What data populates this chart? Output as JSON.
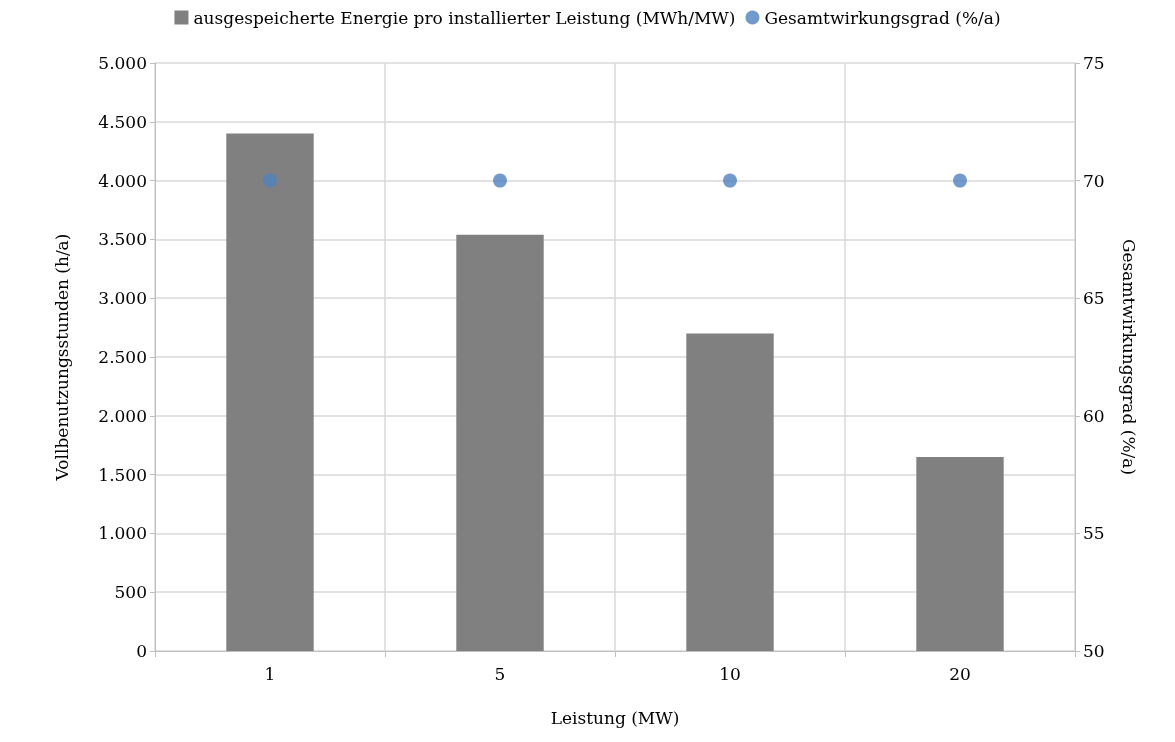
{
  "chart_data": {
    "type": "bar",
    "xlabel": "Leistung (MW)",
    "ylabel": "Vollbenutzungsstunden (h/a)",
    "y2label": "Gesamtwirkungsgrad (%/a)",
    "categories": [
      "1",
      "5",
      "10",
      "20"
    ],
    "series": [
      {
        "name": "ausgespeicherte Energie pro installierter Leistung (MWh/MW)",
        "color": "#808080",
        "values": [
          4400,
          3540,
          2700,
          1650
        ]
      },
      {
        "name": "Gesamtwirkungsgrad (%/a)",
        "type": "scatter",
        "axis": "y2",
        "x": [
          "1",
          "5",
          "10",
          "20"
        ],
        "color": "#4f81bd",
        "marker": "circle",
        "values": [
          70,
          70,
          70,
          70
        ]
      }
    ],
    "ylim": [
      0,
      5000
    ],
    "yticks": [
      {
        "value": 0,
        "label": "0"
      },
      {
        "value": 500,
        "label": "500"
      },
      {
        "value": 1000,
        "label": "1.000"
      },
      {
        "value": 1500,
        "label": "1.500"
      },
      {
        "value": 2000,
        "label": "2.000"
      },
      {
        "value": 2500,
        "label": "2.500"
      },
      {
        "value": 3000,
        "label": "3.000"
      },
      {
        "value": 3500,
        "label": "3.500"
      },
      {
        "value": 4000,
        "label": "4.000"
      },
      {
        "value": 4500,
        "label": "4.500"
      },
      {
        "value": 5000,
        "label": "5.000"
      }
    ],
    "y2lim": [
      50,
      75
    ],
    "y2ticks": [
      50,
      55,
      60,
      65,
      70,
      75
    ],
    "grid": true,
    "legend": "top"
  }
}
